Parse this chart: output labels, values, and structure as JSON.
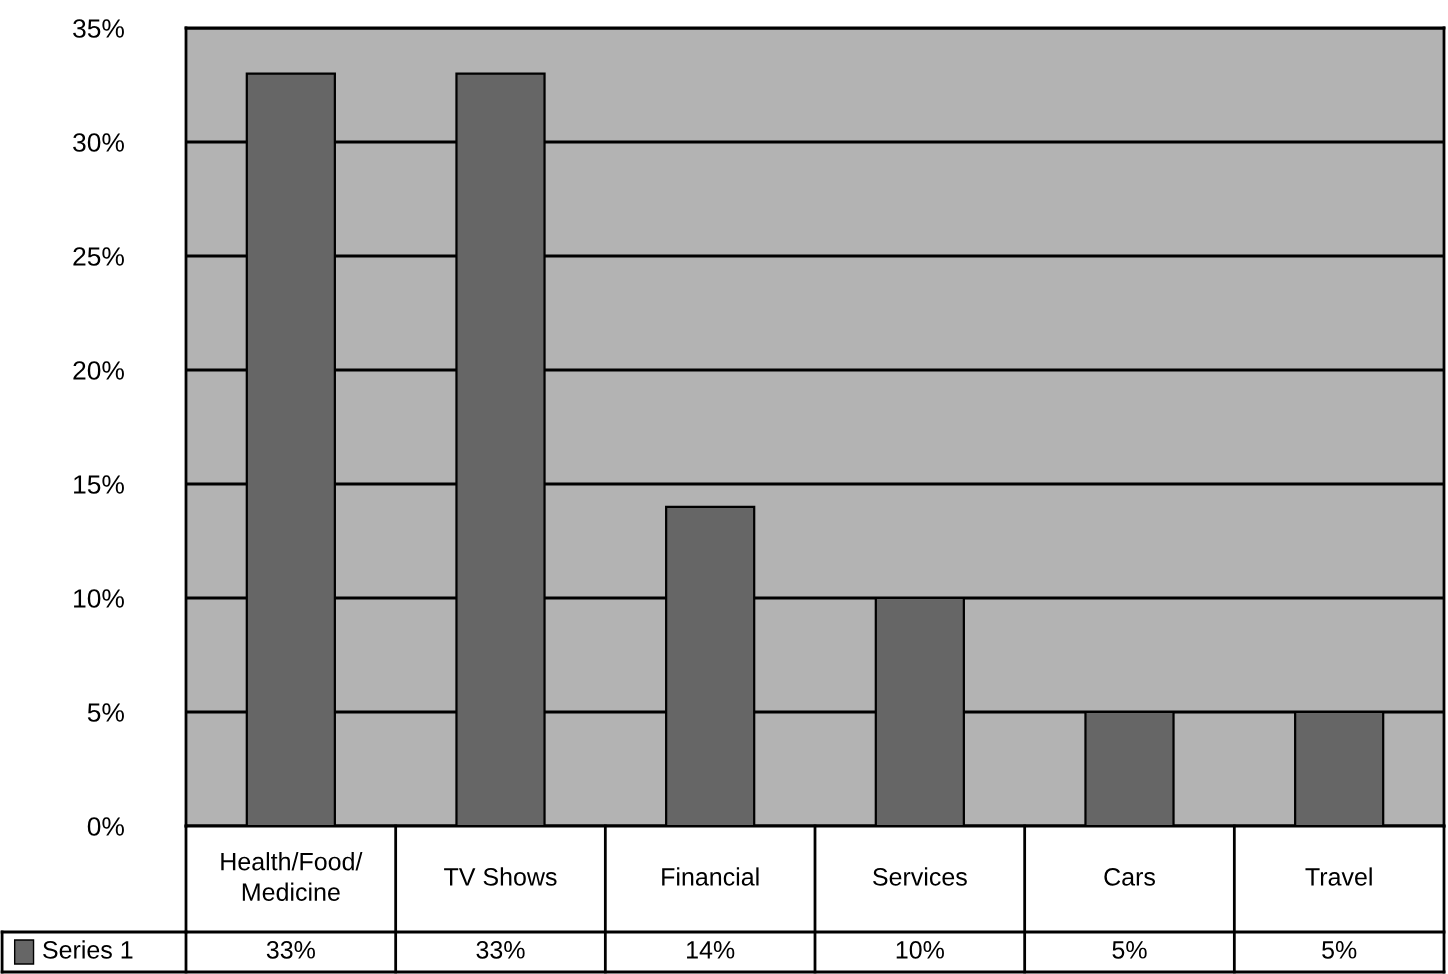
{
  "chart_data": {
    "type": "bar",
    "categories": [
      "Health/Food/\nMedicine",
      "TV Shows",
      "Financial",
      "Services",
      "Cars",
      "Travel"
    ],
    "series": [
      {
        "name": "Series 1",
        "color": "#666666",
        "values": [
          33,
          33,
          14,
          10,
          5,
          5
        ],
        "value_labels": [
          "33%",
          "33%",
          "14%",
          "10%",
          "5%",
          "5%"
        ]
      }
    ],
    "ylim": [
      0,
      35
    ],
    "yticks": [
      {
        "value": 0,
        "label": "0%"
      },
      {
        "value": 5,
        "label": "5%"
      },
      {
        "value": 10,
        "label": "10%"
      },
      {
        "value": 15,
        "label": "15%"
      },
      {
        "value": 20,
        "label": "20%"
      },
      {
        "value": 25,
        "label": "25%"
      },
      {
        "value": 30,
        "label": "30%"
      },
      {
        "value": 35,
        "label": "35%"
      }
    ],
    "grid": "y"
  }
}
